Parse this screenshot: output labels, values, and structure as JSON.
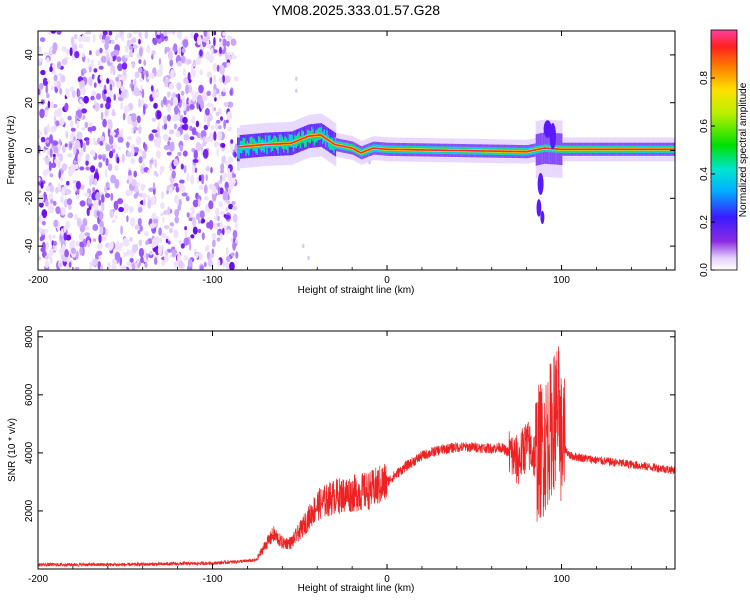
{
  "title": "YM08.2025.333.01.57.G28",
  "chart_data": [
    {
      "type": "heatmap",
      "name": "spectrogram",
      "xlabel": "Height of straight line (km)",
      "ylabel": "Frequency (Hz)",
      "xlim": [
        -200,
        165
      ],
      "ylim": [
        -50,
        50
      ],
      "x_ticks": [
        -200,
        -100,
        0,
        100
      ],
      "x_tick_labels": [
        "-200",
        "-100",
        "0",
        "100"
      ],
      "y_ticks": [
        -40,
        -20,
        0,
        20,
        40
      ],
      "y_tick_labels": [
        "-40",
        "-20",
        "0",
        "20",
        "40"
      ],
      "colorbar": {
        "label": "Normalized spectral amplitude",
        "range": [
          0,
          1
        ],
        "ticks": [
          0.0,
          0.2,
          0.4,
          0.6,
          0.8
        ],
        "tick_labels": [
          "0.0",
          "0.2",
          "0.4",
          "0.6",
          "0.8"
        ],
        "colormap": "rainbow"
      },
      "regions": {
        "noise_region_x": [
          -200,
          -86
        ],
        "signal_start_x": -86
      },
      "ridge": [
        {
          "x": -85,
          "f": 1.5
        },
        {
          "x": -70,
          "f": 2.5
        },
        {
          "x": -55,
          "f": 3.0
        },
        {
          "x": -45,
          "f": 6.0
        },
        {
          "x": -38,
          "f": 6.5
        },
        {
          "x": -30,
          "f": 2.5
        },
        {
          "x": -20,
          "f": 1.0
        },
        {
          "x": -15,
          "f": -1.0
        },
        {
          "x": -8,
          "f": 1.0
        },
        {
          "x": 0,
          "f": 0.5
        },
        {
          "x": 40,
          "f": 0.0
        },
        {
          "x": 80,
          "f": -0.5
        },
        {
          "x": 90,
          "f": 1.0
        },
        {
          "x": 100,
          "f": 0.5
        },
        {
          "x": 165,
          "f": 0.5
        }
      ]
    },
    {
      "type": "line",
      "name": "snr",
      "xlabel": "Height of straight line (km)",
      "ylabel": "SNR (10 * v/v)",
      "xlim": [
        -200,
        165
      ],
      "ylim": [
        0,
        8200
      ],
      "x_ticks": [
        -200,
        -100,
        0,
        100
      ],
      "x_tick_labels": [
        "-200",
        "-100",
        "0",
        "100"
      ],
      "y_ticks": [
        2000,
        4000,
        6000,
        8000
      ],
      "y_tick_labels": [
        "2000",
        "4000",
        "6000",
        "8000"
      ],
      "color": "#ee2222",
      "series": [
        {
          "name": "SNR",
          "x": [
            -200,
            -150,
            -100,
            -75,
            -70,
            -65,
            -60,
            -55,
            -50,
            -40,
            -30,
            -20,
            -10,
            0,
            10,
            20,
            30,
            40,
            50,
            60,
            65,
            70,
            75,
            80,
            85,
            90,
            95,
            98,
            100,
            105,
            110,
            120,
            140,
            165
          ],
          "y": [
            150,
            150,
            200,
            300,
            800,
            1200,
            900,
            900,
            1300,
            2200,
            2500,
            2600,
            2700,
            3000,
            3500,
            3900,
            4100,
            4200,
            4200,
            4150,
            4200,
            4000,
            3700,
            4300,
            3900,
            4200,
            5000,
            5500,
            4300,
            3900,
            3850,
            3750,
            3600,
            3400
          ]
        }
      ]
    }
  ]
}
